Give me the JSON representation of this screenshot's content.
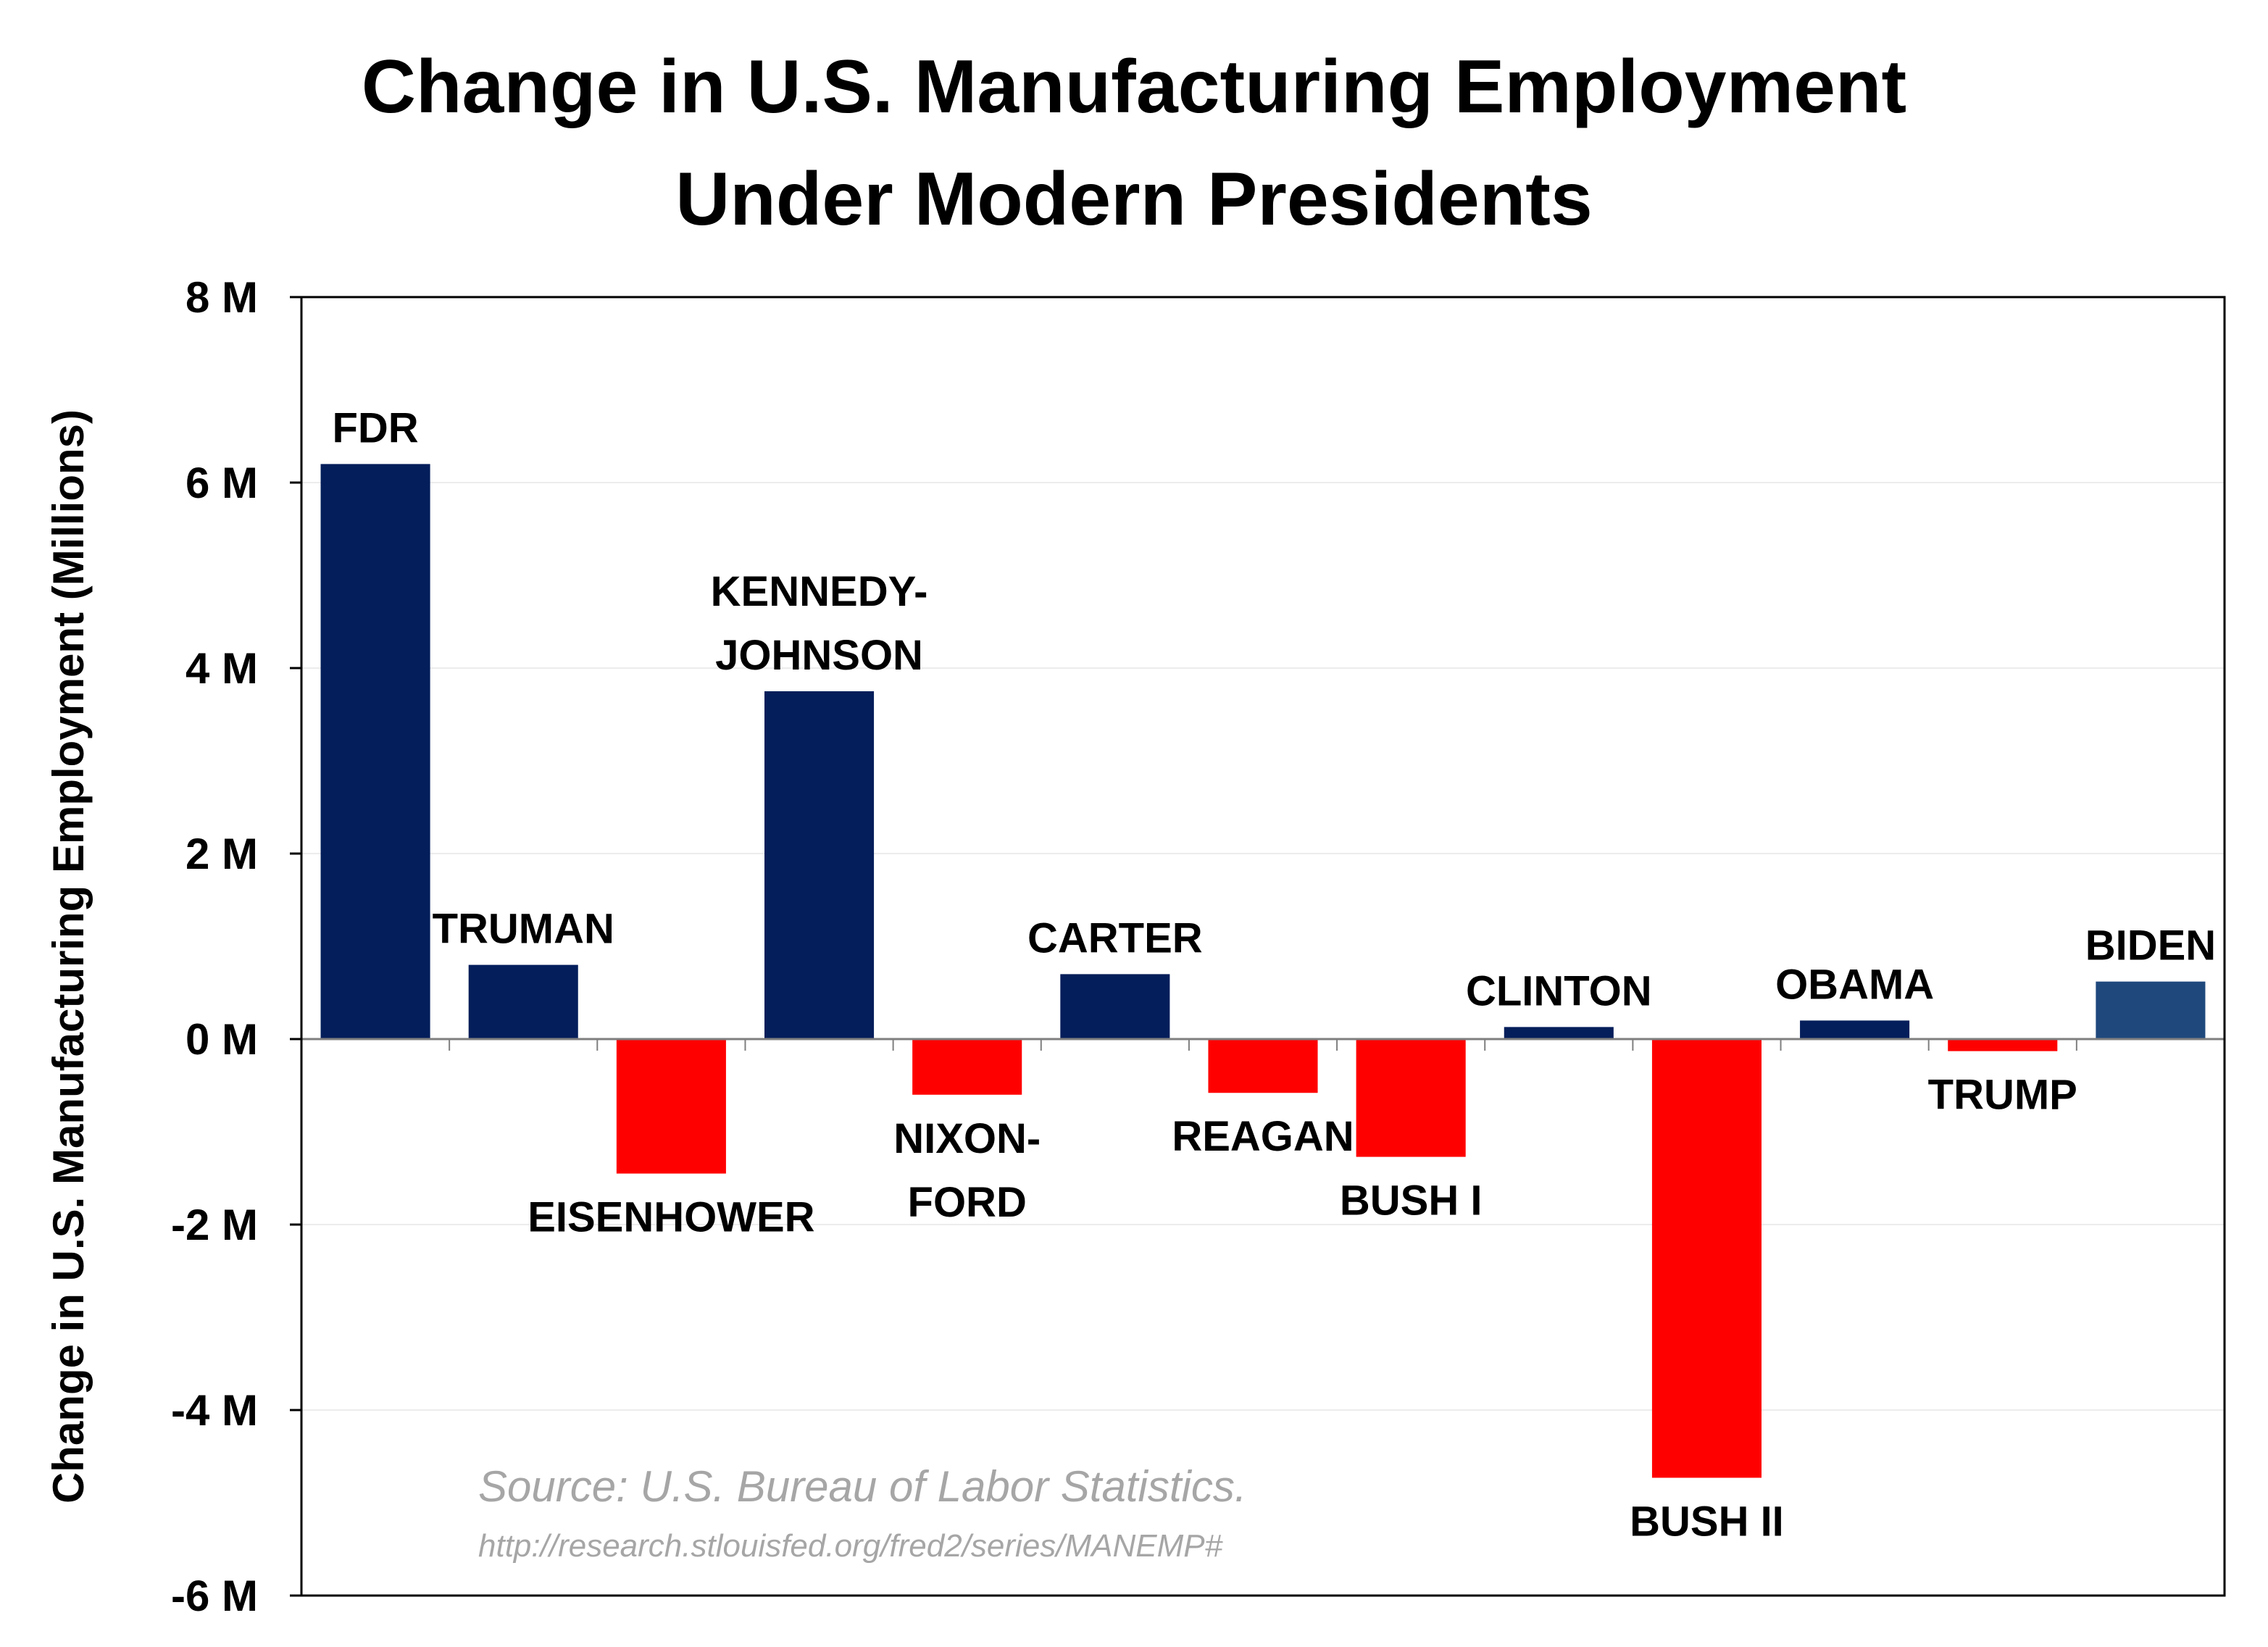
{
  "chart_data": {
    "type": "bar",
    "title_lines": [
      "Change in U.S. Manufacturing Employment",
      "Under Modern Presidents"
    ],
    "ylabel": "Change in U.S. Manufacturing Employment (Millions)",
    "ylim": [
      -6,
      8
    ],
    "yticks": [
      8,
      6,
      4,
      2,
      0,
      -2,
      -4,
      -6
    ],
    "ytick_labels": [
      "8 M",
      "6 M",
      "4 M",
      "2 M",
      "0 M",
      "-2 M",
      "-4 M",
      "-6 M"
    ],
    "grid": true,
    "categories": [
      {
        "lines": [
          "FDR"
        ]
      },
      {
        "lines": [
          "TRUMAN"
        ]
      },
      {
        "lines": [
          "EISENHOWER"
        ]
      },
      {
        "lines": [
          "KENNEDY-",
          "JOHNSON"
        ]
      },
      {
        "lines": [
          "NIXON-",
          "FORD"
        ]
      },
      {
        "lines": [
          "CARTER"
        ]
      },
      {
        "lines": [
          "REAGAN"
        ]
      },
      {
        "lines": [
          "BUSH I"
        ]
      },
      {
        "lines": [
          "CLINTON"
        ]
      },
      {
        "lines": [
          "BUSH II"
        ]
      },
      {
        "lines": [
          "OBAMA"
        ]
      },
      {
        "lines": [
          "TRUMP"
        ]
      },
      {
        "lines": [
          "BIDEN"
        ]
      }
    ],
    "values": [
      6.2,
      0.8,
      -1.45,
      3.75,
      -0.6,
      0.7,
      -0.58,
      -1.27,
      0.13,
      -4.73,
      0.2,
      -0.13,
      0.62
    ],
    "colors": [
      "#041e5b",
      "#041e5b",
      "#ff0000",
      "#041e5b",
      "#ff0000",
      "#041e5b",
      "#ff0000",
      "#ff0000",
      "#041e5b",
      "#ff0000",
      "#041e5b",
      "#ff0000",
      "#1f497d"
    ],
    "source": "Source: U.S. Bureau of Labor Statistics.",
    "source_url": "http://research.stlouisfed.org/fred2/series/MANEMP#"
  }
}
